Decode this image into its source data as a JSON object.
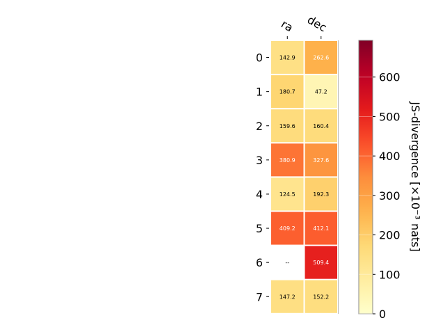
{
  "chart_data": {
    "type": "heatmap",
    "columns": [
      "ra",
      "dec"
    ],
    "rows": [
      "0",
      "1",
      "2",
      "3",
      "4",
      "5",
      "6",
      "7"
    ],
    "values": [
      [
        142.9,
        262.6
      ],
      [
        180.7,
        47.2
      ],
      [
        159.6,
        160.4
      ],
      [
        380.9,
        327.6
      ],
      [
        124.5,
        192.3
      ],
      [
        409.2,
        412.1
      ],
      [
        null,
        509.4
      ],
      [
        147.2,
        152.2
      ]
    ],
    "cell_labels": [
      [
        "142.9",
        "262.6"
      ],
      [
        "180.7",
        "47.2"
      ],
      [
        "159.6",
        "160.4"
      ],
      [
        "380.9",
        "327.6"
      ],
      [
        "124.5",
        "192.3"
      ],
      [
        "409.2",
        "412.1"
      ],
      [
        "--",
        "509.4"
      ],
      [
        "147.2",
        "152.2"
      ]
    ],
    "colorbar": {
      "label": "JS-divergence [×10⁻³ nats]",
      "range": [
        0,
        693
      ],
      "ticks": [
        0,
        100,
        200,
        300,
        400,
        500,
        600
      ],
      "colormap": "YlOrRd"
    },
    "missing_color": "#ffffff",
    "grid": false
  }
}
